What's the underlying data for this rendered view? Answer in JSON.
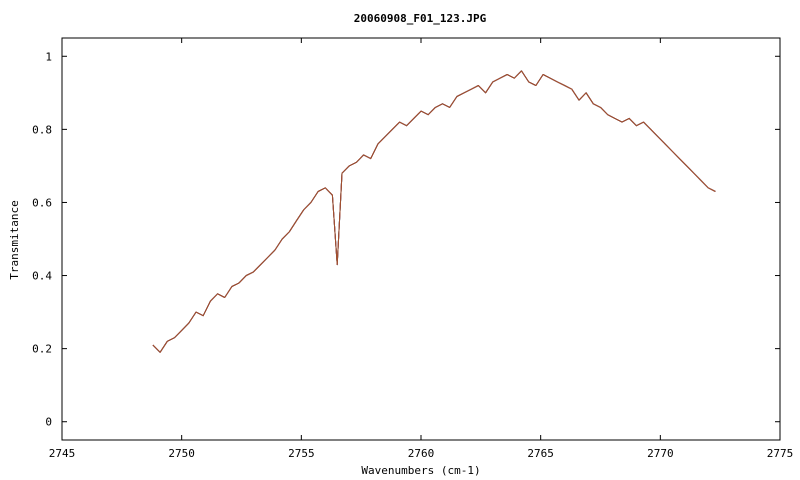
{
  "chart_data": {
    "type": "line",
    "title": "20060908_F01_123.JPG",
    "xlabel": "Wavenumbers (cm-1)",
    "ylabel": "Transmitance",
    "xlim": [
      2745,
      2775
    ],
    "ylim": [
      -0.05,
      1.05
    ],
    "xticks": [
      2745,
      2750,
      2755,
      2760,
      2765,
      2770,
      2775
    ],
    "yticks": [
      0,
      0.2,
      0.4,
      0.6,
      0.8,
      1
    ],
    "ytick_labels": [
      "0",
      "0.2",
      "0.4",
      "0.6",
      "0.8",
      "1"
    ],
    "grid": false,
    "legend": "none",
    "x": [
      2748.8,
      2749.1,
      2749.4,
      2749.7,
      2750.0,
      2750.3,
      2750.6,
      2750.9,
      2751.2,
      2751.5,
      2751.8,
      2752.1,
      2752.4,
      2752.7,
      2753.0,
      2753.3,
      2753.6,
      2753.9,
      2754.2,
      2754.5,
      2754.8,
      2755.1,
      2755.4,
      2755.7,
      2756.0,
      2756.3,
      2756.5,
      2756.7,
      2757.0,
      2757.3,
      2757.6,
      2757.9,
      2758.2,
      2758.5,
      2758.8,
      2759.1,
      2759.4,
      2759.7,
      2760.0,
      2760.3,
      2760.6,
      2760.9,
      2761.2,
      2761.5,
      2761.8,
      2762.1,
      2762.4,
      2762.7,
      2763.0,
      2763.3,
      2763.6,
      2763.9,
      2764.2,
      2764.5,
      2764.8,
      2765.1,
      2765.4,
      2765.7,
      2766.0,
      2766.3,
      2766.6,
      2766.9,
      2767.2,
      2767.5,
      2767.8,
      2768.1,
      2768.4,
      2768.7,
      2769.0,
      2769.3,
      2769.6,
      2769.9,
      2770.2,
      2770.5,
      2770.8,
      2771.1,
      2771.4,
      2771.7,
      2772.0,
      2772.3
    ],
    "series": [
      {
        "color": "#1f3fbf",
        "values": [
          0.21,
          0.19,
          0.22,
          0.23,
          0.25,
          0.27,
          0.3,
          0.29,
          0.33,
          0.35,
          0.34,
          0.37,
          0.38,
          0.4,
          0.41,
          0.43,
          0.45,
          0.47,
          0.5,
          0.52,
          0.55,
          0.58,
          0.6,
          0.63,
          0.64,
          0.62,
          0.43,
          0.68,
          0.7,
          0.71,
          0.73,
          0.72,
          0.76,
          0.78,
          0.8,
          0.82,
          0.81,
          0.83,
          0.85,
          0.84,
          0.86,
          0.87,
          0.86,
          0.89,
          0.9,
          0.91,
          0.92,
          0.9,
          0.93,
          0.94,
          0.95,
          0.94,
          0.96,
          0.93,
          0.92,
          0.95,
          0.94,
          0.93,
          0.92,
          0.91,
          0.88,
          0.9,
          0.87,
          0.86,
          0.84,
          0.83,
          0.82,
          0.83,
          0.81,
          0.82,
          0.8,
          0.78,
          0.76,
          0.74,
          0.72,
          0.7,
          0.68,
          0.66,
          0.64,
          0.63
        ]
      },
      {
        "color": "#2aa8c9",
        "values": [
          0.21,
          0.19,
          0.22,
          0.23,
          0.25,
          0.27,
          0.3,
          0.29,
          0.33,
          0.35,
          0.34,
          0.37,
          0.38,
          0.4,
          0.41,
          0.43,
          0.45,
          0.47,
          0.5,
          0.52,
          0.55,
          0.58,
          0.6,
          0.63,
          0.64,
          0.62,
          0.43,
          0.68,
          0.7,
          0.71,
          0.73,
          0.72,
          0.76,
          0.78,
          0.8,
          0.82,
          0.81,
          0.83,
          0.85,
          0.84,
          0.86,
          0.87,
          0.86,
          0.89,
          0.9,
          0.91,
          0.92,
          0.9,
          0.93,
          0.94,
          0.95,
          0.94,
          0.96,
          0.93,
          0.92,
          0.95,
          0.94,
          0.93,
          0.92,
          0.91,
          0.88,
          0.9,
          0.87,
          0.86,
          0.84,
          0.83,
          0.82,
          0.83,
          0.81,
          0.82,
          0.8,
          0.78,
          0.76,
          0.74,
          0.72,
          0.7,
          0.68,
          0.66,
          0.64,
          0.63
        ]
      },
      {
        "color": "#4caf50",
        "values": [
          0.21,
          0.19,
          0.22,
          0.23,
          0.25,
          0.27,
          0.3,
          0.29,
          0.33,
          0.35,
          0.34,
          0.37,
          0.38,
          0.4,
          0.41,
          0.43,
          0.45,
          0.47,
          0.5,
          0.52,
          0.55,
          0.58,
          0.6,
          0.63,
          0.64,
          0.62,
          0.43,
          0.68,
          0.7,
          0.71,
          0.73,
          0.72,
          0.76,
          0.78,
          0.8,
          0.82,
          0.81,
          0.83,
          0.85,
          0.84,
          0.86,
          0.87,
          0.86,
          0.89,
          0.9,
          0.91,
          0.92,
          0.9,
          0.93,
          0.94,
          0.95,
          0.94,
          0.96,
          0.93,
          0.92,
          0.95,
          0.94,
          0.93,
          0.92,
          0.91,
          0.88,
          0.9,
          0.87,
          0.86,
          0.84,
          0.83,
          0.82,
          0.83,
          0.81,
          0.82,
          0.8,
          0.78,
          0.76,
          0.74,
          0.72,
          0.7,
          0.68,
          0.66,
          0.64,
          0.63
        ]
      },
      {
        "color": "#7e57c2",
        "values": [
          0.21,
          0.19,
          0.22,
          0.23,
          0.25,
          0.27,
          0.3,
          0.29,
          0.33,
          0.35,
          0.34,
          0.37,
          0.38,
          0.4,
          0.41,
          0.43,
          0.45,
          0.47,
          0.5,
          0.52,
          0.55,
          0.58,
          0.6,
          0.63,
          0.64,
          0.62,
          0.43,
          0.68,
          0.7,
          0.71,
          0.73,
          0.72,
          0.76,
          0.78,
          0.8,
          0.82,
          0.81,
          0.83,
          0.85,
          0.84,
          0.86,
          0.87,
          0.86,
          0.89,
          0.9,
          0.91,
          0.92,
          0.9,
          0.93,
          0.94,
          0.95,
          0.94,
          0.96,
          0.93,
          0.92,
          0.95,
          0.94,
          0.93,
          0.92,
          0.91,
          0.88,
          0.9,
          0.87,
          0.86,
          0.84,
          0.83,
          0.82,
          0.83,
          0.81,
          0.82,
          0.8,
          0.78,
          0.76,
          0.74,
          0.72,
          0.7,
          0.68,
          0.66,
          0.64,
          0.63
        ]
      },
      {
        "color": "#c62828",
        "values": [
          0.21,
          0.19,
          0.22,
          0.23,
          0.25,
          0.27,
          0.3,
          0.29,
          0.33,
          0.35,
          0.34,
          0.37,
          0.38,
          0.4,
          0.41,
          0.43,
          0.45,
          0.47,
          0.5,
          0.52,
          0.55,
          0.58,
          0.6,
          0.63,
          0.64,
          0.62,
          0.43,
          0.68,
          0.7,
          0.71,
          0.73,
          0.72,
          0.76,
          0.78,
          0.8,
          0.82,
          0.81,
          0.83,
          0.85,
          0.84,
          0.86,
          0.87,
          0.86,
          0.89,
          0.9,
          0.91,
          0.92,
          0.9,
          0.93,
          0.94,
          0.95,
          0.94,
          0.96,
          0.93,
          0.92,
          0.95,
          0.94,
          0.93,
          0.92,
          0.91,
          0.88,
          0.9,
          0.87,
          0.86,
          0.84,
          0.83,
          0.82,
          0.83,
          0.81,
          0.82,
          0.8,
          0.78,
          0.76,
          0.74,
          0.72,
          0.7,
          0.68,
          0.66,
          0.64,
          0.63
        ]
      },
      {
        "color": "#a0522d",
        "values": [
          0.21,
          0.19,
          0.22,
          0.23,
          0.25,
          0.27,
          0.3,
          0.29,
          0.33,
          0.35,
          0.34,
          0.37,
          0.38,
          0.4,
          0.41,
          0.43,
          0.45,
          0.47,
          0.5,
          0.52,
          0.55,
          0.58,
          0.6,
          0.63,
          0.64,
          0.62,
          0.43,
          0.68,
          0.7,
          0.71,
          0.73,
          0.72,
          0.76,
          0.78,
          0.8,
          0.82,
          0.81,
          0.83,
          0.85,
          0.84,
          0.86,
          0.87,
          0.86,
          0.89,
          0.9,
          0.91,
          0.92,
          0.9,
          0.93,
          0.94,
          0.95,
          0.94,
          0.96,
          0.93,
          0.92,
          0.95,
          0.94,
          0.93,
          0.92,
          0.91,
          0.88,
          0.9,
          0.87,
          0.86,
          0.84,
          0.83,
          0.82,
          0.83,
          0.81,
          0.82,
          0.8,
          0.78,
          0.76,
          0.74,
          0.72,
          0.7,
          0.68,
          0.66,
          0.64,
          0.63
        ]
      }
    ]
  }
}
